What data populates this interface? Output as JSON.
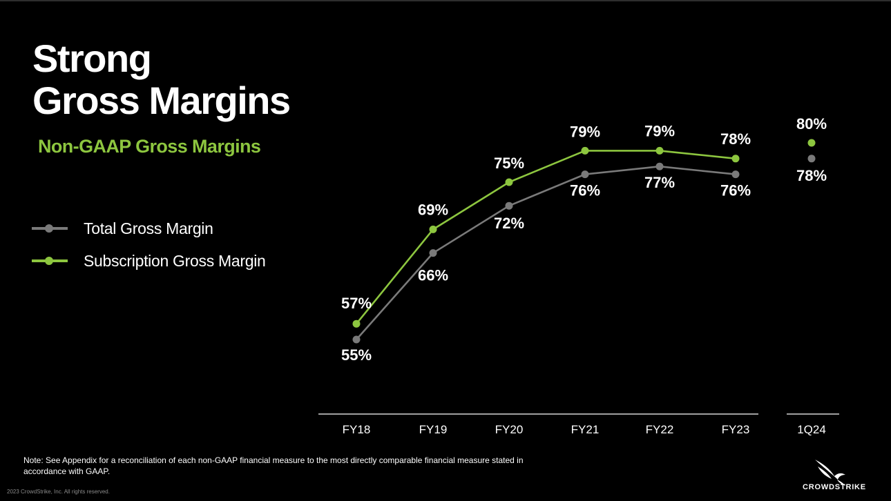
{
  "slide": {
    "title_line1": "Strong",
    "title_line2": "Gross Margins",
    "subtitle": "Non-GAAP Gross Margins",
    "note": "Note: See Appendix for a reconciliation of each non-GAAP financial measure to the most directly comparable financial measure stated in accordance with GAAP.",
    "copyright": "2023 CrowdStrike, Inc. All rights reserved.",
    "logo_text": "CROWDSTRIKE"
  },
  "colors": {
    "background": "#000000",
    "total": "#7a7a7a",
    "subscription": "#8dc63f",
    "axis": "#ffffff"
  },
  "legend": [
    {
      "label": "Total Gross Margin",
      "color": "#7a7a7a"
    },
    {
      "label": "Subscription Gross Margin",
      "color": "#8dc63f"
    }
  ],
  "chart_data": {
    "type": "line",
    "categories": [
      "FY18",
      "FY19",
      "FY20",
      "FY21",
      "FY22",
      "FY23",
      "1Q24"
    ],
    "series": [
      {
        "name": "Total Gross Margin",
        "values": [
          55,
          66,
          72,
          76,
          77,
          76,
          78
        ],
        "labels": [
          "55%",
          "66%",
          "72%",
          "76%",
          "77%",
          "76%",
          "78%"
        ]
      },
      {
        "name": "Subscription Gross Margin",
        "values": [
          57,
          69,
          75,
          79,
          79,
          78,
          80
        ],
        "labels": [
          "57%",
          "69%",
          "75%",
          "79%",
          "79%",
          "78%",
          "80%"
        ]
      }
    ],
    "connected_points": 6,
    "grid": false,
    "legend_position": "left",
    "title": "",
    "xlabel": "",
    "ylabel": ""
  }
}
